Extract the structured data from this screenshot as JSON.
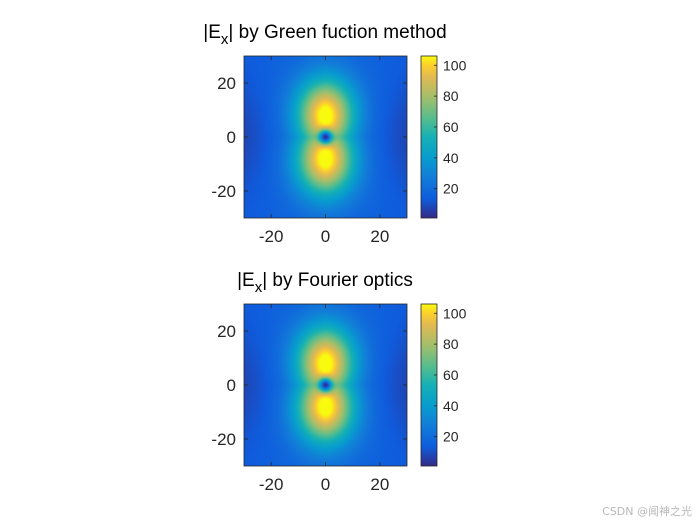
{
  "chart_data": [
    {
      "type": "heatmap",
      "title_main": "|E",
      "title_sub": "x",
      "title_rest": "| by Green fuction method",
      "xlim": [
        -30,
        30
      ],
      "ylim": [
        -30,
        30
      ],
      "xticks": [
        -20,
        0,
        20
      ],
      "yticks": [
        -20,
        0,
        20
      ],
      "colorbar": {
        "ticks": [
          20,
          40,
          60,
          80,
          100
        ],
        "range": [
          1,
          106
        ]
      },
      "colormap": "parula",
      "field": {
        "peak": 105,
        "peak_y": 8,
        "null_at": [
          0,
          0
        ],
        "pattern": "dipole lobes along y"
      }
    },
    {
      "type": "heatmap",
      "title_main": "|E",
      "title_sub": "x",
      "title_rest": "| by Fourier optics",
      "xlim": [
        -30,
        30
      ],
      "ylim": [
        -30,
        30
      ],
      "xticks": [
        -20,
        0,
        20
      ],
      "yticks": [
        -20,
        0,
        20
      ],
      "colorbar": {
        "ticks": [
          20,
          40,
          60,
          80,
          100
        ],
        "range": [
          1,
          106
        ]
      },
      "colormap": "parula",
      "field": {
        "peak": 105,
        "peak_y": 8,
        "null_at": [
          0,
          0
        ],
        "pattern": "dipole lobes along y"
      }
    }
  ],
  "watermark": "CSDN @闻神之光"
}
